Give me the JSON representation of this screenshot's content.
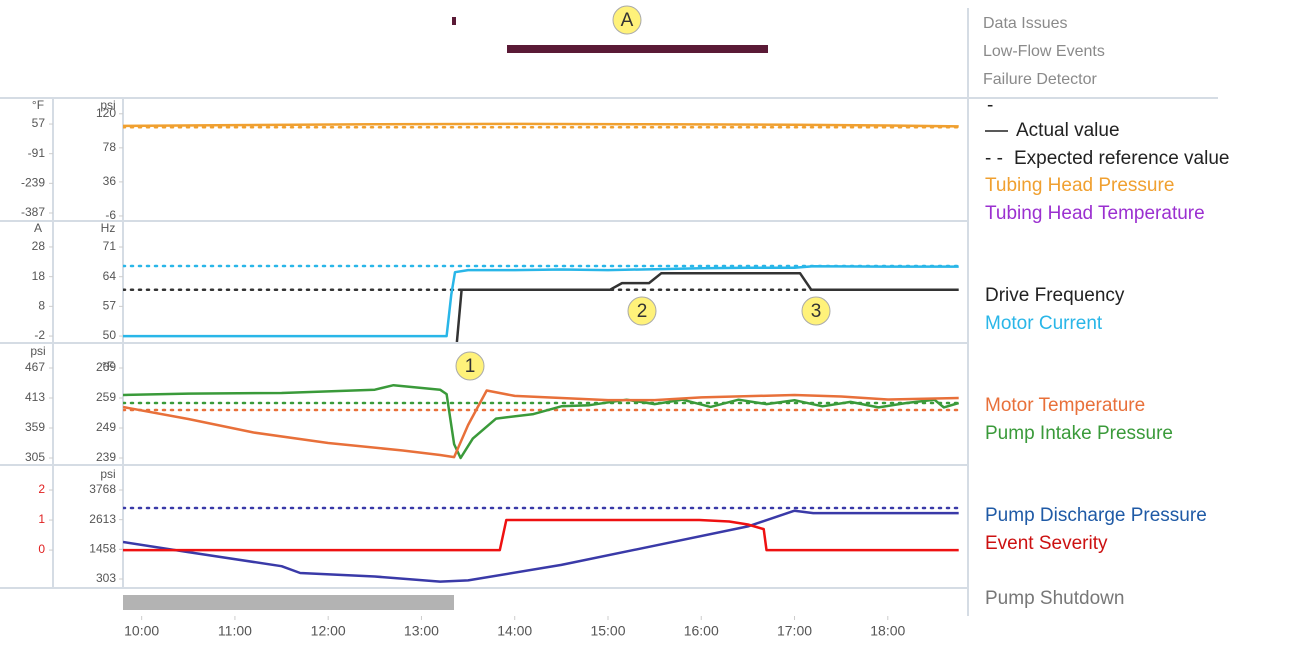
{
  "header_labels": [
    "Data Issues",
    "Low-Flow Events",
    "Failure Detector"
  ],
  "legend_key": {
    "dash": "-",
    "actual": "Actual value",
    "expected_marker": "- -",
    "expected": "Expected reference value"
  },
  "annotations": {
    "a": "A",
    "one": "1",
    "two": "2",
    "three": "3"
  },
  "shutdown_label": "Pump Shutdown",
  "shutdown_color": "#777777",
  "chart_data": [
    {
      "type": "line",
      "xlim": [
        9.8,
        18.86
      ],
      "y_label": "psi",
      "ylim": [
        -11,
        137
      ],
      "yticks": [
        120,
        78,
        36,
        -6
      ],
      "y2_label": "°F",
      "y2lim": [
        -422,
        177
      ],
      "y2ticks": [
        57,
        -91,
        -239,
        -387
      ],
      "series": [
        {
          "name": "Tubing Head Pressure",
          "color": "#f0a030",
          "x": [
            9.8,
            11,
            12.5,
            14,
            15.5,
            17,
            18,
            18.76
          ],
          "values": [
            105,
            106,
            107,
            107.5,
            107,
            106.5,
            105.5,
            104.5
          ]
        },
        {
          "style": "dotted",
          "color": "#f0a030",
          "x": [
            9.8,
            18.76
          ],
          "values": [
            103.5,
            103.5
          ]
        }
      ],
      "legend": [
        {
          "name": "Tubing Head Pressure",
          "color": "#f0a030"
        },
        {
          "name": "Tubing Head Temperature",
          "color": "#9b30d0"
        }
      ]
    },
    {
      "type": "line",
      "xlim": [
        9.8,
        18.86
      ],
      "y_label": "Hz",
      "ylim": [
        48.6,
        76.9
      ],
      "yticks": [
        71,
        64,
        57,
        50
      ],
      "y2_label": "A",
      "y2lim": [
        -4.0,
        36.4
      ],
      "y2ticks": [
        28,
        18,
        8,
        -2
      ],
      "series": [
        {
          "style": "dotted",
          "color": "#29b6e8",
          "axis": "y2",
          "x": [
            9.8,
            18.76
          ],
          "values": [
            21.6,
            21.6
          ]
        },
        {
          "style": "dotted",
          "color": "#333333",
          "x": [
            9.8,
            18.76
          ],
          "values": [
            60.9,
            60.9
          ]
        },
        {
          "name": "Motor Current",
          "color": "#29b6e8",
          "axis": "y2",
          "x": [
            9.8,
            13.27,
            13.32,
            13.36,
            13.5,
            14,
            14.5,
            15,
            15.5,
            16,
            16.5,
            17,
            17.2,
            18,
            18.76
          ],
          "values": [
            -2,
            -2,
            12,
            19.5,
            20.2,
            20.2,
            20.4,
            20.2,
            20.5,
            20.8,
            21,
            21,
            21.5,
            21.4,
            21.4
          ]
        },
        {
          "name": "Drive Frequency",
          "color": "#333333",
          "x": [
            13.38,
            13.43,
            15.02,
            15.15,
            15.44,
            15.57,
            17.06,
            17.18,
            18.76
          ],
          "values": [
            48.6,
            60.9,
            60.9,
            62.5,
            62.5,
            64.8,
            64.8,
            60.9,
            60.9
          ]
        }
      ],
      "legend": [
        {
          "name": "Drive Frequency",
          "color": "#222222"
        },
        {
          "name": "Motor Current",
          "color": "#29b6e8"
        }
      ]
    },
    {
      "type": "line",
      "xlim": [
        9.8,
        18.86
      ],
      "y_label": "°F",
      "ylim": [
        237,
        277
      ],
      "yticks": [
        269,
        259,
        249,
        239
      ],
      "y2_label": "psi",
      "y2lim": [
        294.2,
        510.2
      ],
      "y2ticks": [
        467,
        413,
        359,
        305
      ],
      "series": [
        {
          "style": "dotted",
          "color": "#e8703a",
          "x": [
            9.8,
            18.76
          ],
          "values": [
            255,
            255
          ]
        },
        {
          "style": "dotted",
          "color": "#3a9a3a",
          "axis": "y2",
          "x": [
            9.8,
            18.76
          ],
          "values": [
            404,
            404
          ]
        },
        {
          "name": "Pump Intake Pressure",
          "color": "#3a9a3a",
          "axis": "y2",
          "x": [
            9.8,
            10.5,
            11.5,
            12.5,
            12.7,
            13.2,
            13.27,
            13.35,
            13.42,
            13.55,
            13.8,
            14.2,
            14.5,
            14.8,
            15.2,
            15.5,
            15.8,
            16.1,
            16.4,
            16.7,
            17,
            17.3,
            17.6,
            17.9,
            18.2,
            18.5,
            18.6,
            18.76
          ],
          "values": [
            418.4,
            421,
            422,
            428,
            436,
            428,
            420,
            330,
            305,
            340,
            376,
            384,
            398,
            400,
            410,
            402,
            410,
            397,
            410,
            402,
            409,
            398,
            406,
            396,
            404,
            410,
            396,
            404
          ]
        },
        {
          "name": "Motor Temperature",
          "color": "#e8703a",
          "x": [
            9.8,
            10.5,
            11.2,
            12,
            12.8,
            13.2,
            13.35,
            13.5,
            13.7,
            14,
            14.5,
            15,
            15.5,
            16,
            17,
            17.5,
            18,
            18.76
          ],
          "values": [
            256,
            252,
            247.5,
            244,
            241.5,
            240,
            239.3,
            250,
            261.5,
            259.7,
            259,
            258.3,
            258.3,
            259.2,
            260,
            259.5,
            258.5,
            259
          ]
        }
      ],
      "legend": [
        {
          "name": "Motor Temperature",
          "color": "#e8703a"
        },
        {
          "name": "Pump Intake Pressure",
          "color": "#3a9a3a"
        }
      ]
    },
    {
      "type": "line",
      "xlim": [
        9.8,
        18.86
      ],
      "xticks": [
        {
          "value": 10,
          "label": "10:00"
        },
        {
          "value": 11,
          "label": "11:00"
        },
        {
          "value": 12,
          "label": "12:00"
        },
        {
          "value": 13,
          "label": "13:00"
        },
        {
          "value": 14,
          "label": "14:00"
        },
        {
          "value": 15,
          "label": "15:00"
        },
        {
          "value": 16,
          "label": "16:00"
        },
        {
          "value": 17,
          "label": "17:00"
        },
        {
          "value": 18,
          "label": "18:00"
        }
      ],
      "y_label": "psi",
      "ylim": [
        -8.4,
        4702
      ],
      "yticks": [
        3768,
        2613,
        1458,
        303
      ],
      "y2lim": [
        -1.23,
        2.8
      ],
      "y2ticks": [
        2,
        1,
        0
      ],
      "y2_color": "#e02020",
      "series": [
        {
          "style": "dotted",
          "color": "#3a3aa8",
          "x": [
            9.8,
            18.76
          ],
          "values": [
            3067,
            3067
          ]
        },
        {
          "name": "Pump Discharge Pressure",
          "color": "#3a3aa8",
          "x": [
            9.8,
            10.5,
            11.5,
            11.7,
            12.5,
            13.2,
            13.5,
            14.5,
            15.5,
            16.5,
            17,
            17.2,
            18.76
          ],
          "values": [
            1744,
            1350,
            800,
            537,
            400,
            200,
            250,
            850,
            1600,
            2350,
            2960,
            2870,
            2870
          ]
        },
        {
          "name": "Event Severity",
          "color": "#ee1111",
          "axis": "y2",
          "x": [
            9.8,
            13.84,
            13.91,
            15.98,
            16.3,
            16.5,
            16.67,
            16.7,
            18.76
          ],
          "values": [
            0,
            0,
            1,
            1,
            0.95,
            0.85,
            0.7,
            0,
            0
          ]
        }
      ],
      "legend": [
        {
          "name": "Pump Discharge Pressure",
          "color": "#1f5aa6"
        },
        {
          "name": "Event Severity",
          "color": "#cc1111"
        }
      ]
    }
  ]
}
